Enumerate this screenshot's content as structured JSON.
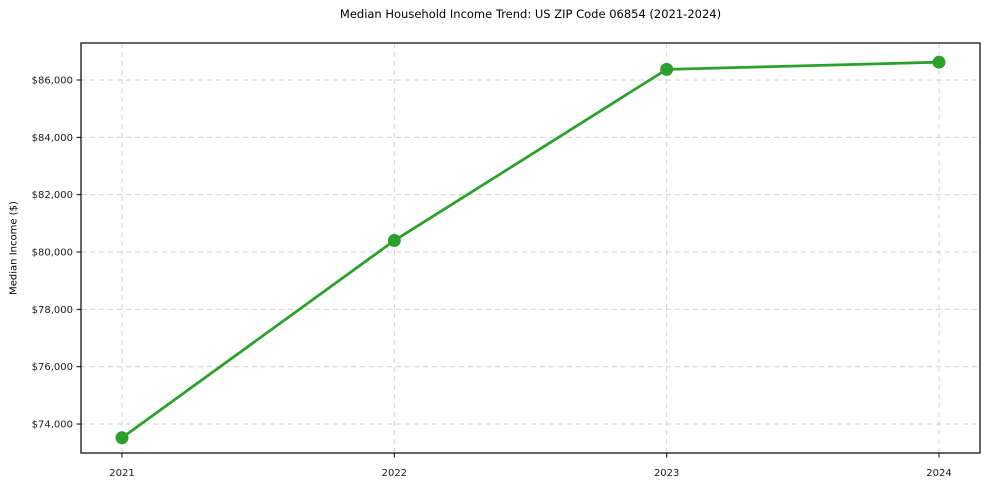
{
  "chart_data": {
    "type": "line",
    "title": "Median Household Income Trend: US ZIP Code 06854 (2021-2024)",
    "ylabel": "Median Income ($)",
    "x": [
      "2021",
      "2022",
      "2023",
      "2024"
    ],
    "values": [
      73520,
      80400,
      86370,
      86620
    ],
    "ytick_values": [
      74000,
      76000,
      78000,
      80000,
      82000,
      84000,
      86000
    ],
    "ytick_labels": [
      "$74,000",
      "$76,000",
      "$78,000",
      "$80,000",
      "$82,000",
      "$84,000",
      "$86,000"
    ],
    "ylim": [
      72990,
      87290
    ],
    "grid": "both-dashed",
    "line_color": "#2ca02c",
    "marker": "circle",
    "grid_color": "#d0d0d0",
    "axis_color": "#000000",
    "tick_label_color": "#1a1a1a"
  }
}
